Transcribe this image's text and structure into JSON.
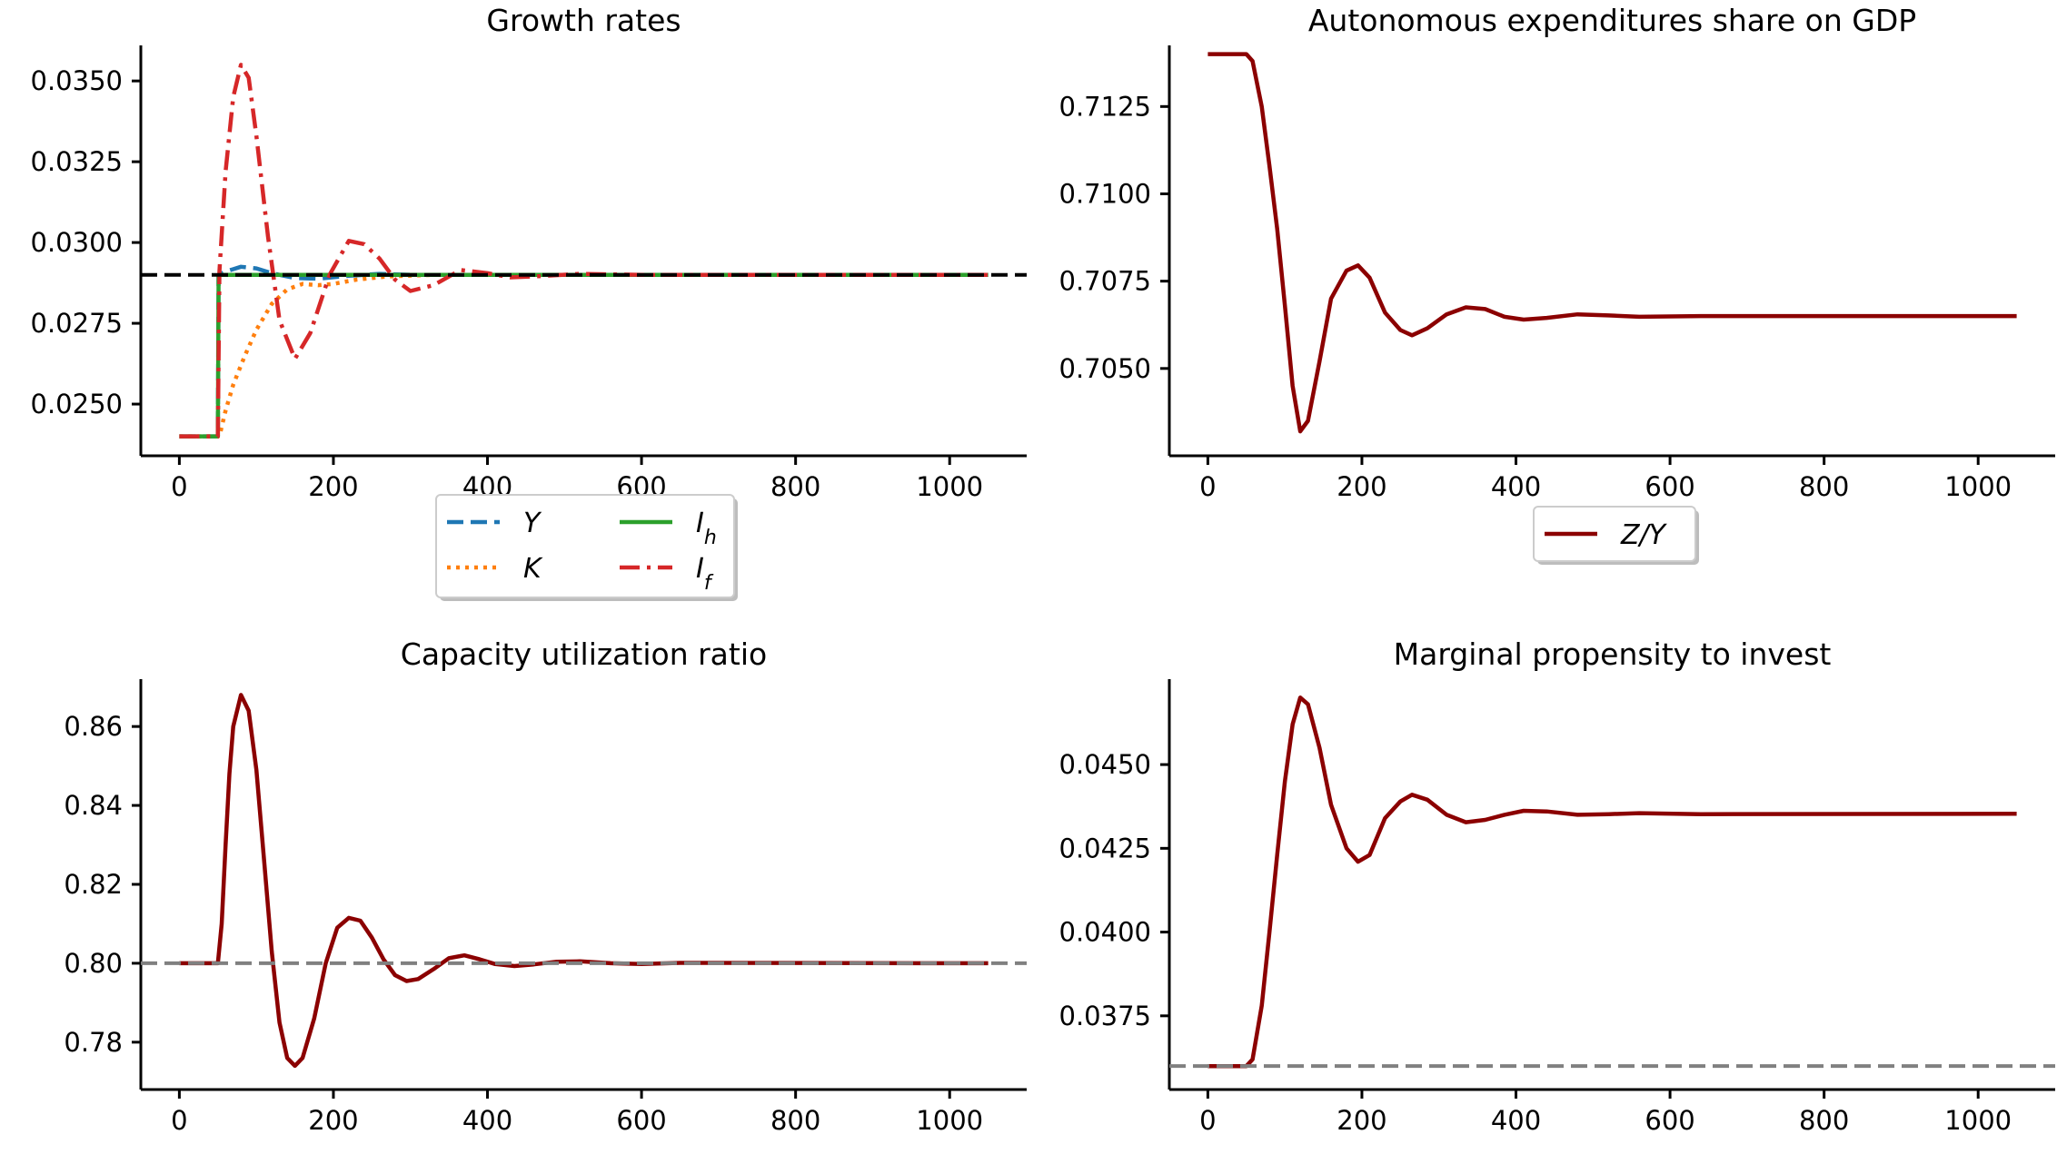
{
  "figure": {
    "background": "#ffffff"
  },
  "colors": {
    "tab_blue": "#1f77b4",
    "tab_orange": "#ff7f0e",
    "tab_green": "#2ca02c",
    "tab_red": "#d62728",
    "darkred": "#8b0000",
    "gray": "#808080",
    "black": "#000000"
  },
  "chart_data": [
    {
      "id": "growth",
      "type": "line",
      "title": "Growth rates",
      "xlabel": "",
      "ylabel": "",
      "xlim": [
        -50,
        1100
      ],
      "ylim": [
        0.0234,
        0.0361
      ],
      "xticks": [
        0,
        200,
        400,
        600,
        800,
        1000
      ],
      "xtick_labels": [
        "0",
        "200",
        "400",
        "600",
        "800",
        "1000"
      ],
      "yticks": [
        0.025,
        0.0275,
        0.03,
        0.0325,
        0.035
      ],
      "ytick_labels": [
        "0.0250",
        "0.0275",
        "0.0300",
        "0.0325",
        "0.0350"
      ],
      "grid": false,
      "legend": {
        "placement": "below",
        "columns": 2
      },
      "reference_lines": [
        {
          "y": 0.029,
          "style": "dashed",
          "color": "#000000"
        }
      ],
      "series": [
        {
          "name": "Y",
          "label_html": "Y",
          "color": "#1f77b4",
          "style": "dashed",
          "points": [
            [
              0,
              0.024
            ],
            [
              50,
              0.024
            ],
            [
              51,
              0.029
            ],
            [
              60,
              0.0291
            ],
            [
              80,
              0.02925
            ],
            [
              100,
              0.0292
            ],
            [
              120,
              0.02905
            ],
            [
              150,
              0.0289
            ],
            [
              180,
              0.02888
            ],
            [
              220,
              0.02897
            ],
            [
              260,
              0.02903
            ],
            [
              300,
              0.029
            ],
            [
              400,
              0.029
            ],
            [
              1050,
              0.029
            ]
          ]
        },
        {
          "name": "K",
          "label_html": "K",
          "color": "#ff7f0e",
          "style": "dotted",
          "points": [
            [
              0,
              0.024
            ],
            [
              52,
              0.024
            ],
            [
              60,
              0.0248
            ],
            [
              70,
              0.0256
            ],
            [
              85,
              0.0265
            ],
            [
              100,
              0.0273
            ],
            [
              120,
              0.0281
            ],
            [
              140,
              0.02855
            ],
            [
              160,
              0.02872
            ],
            [
              180,
              0.02868
            ],
            [
              200,
              0.02872
            ],
            [
              230,
              0.02885
            ],
            [
              270,
              0.02895
            ],
            [
              330,
              0.029
            ],
            [
              1050,
              0.029
            ]
          ]
        },
        {
          "name": "I_h",
          "label_html": "I<sub>h</sub>",
          "color": "#2ca02c",
          "style": "solid",
          "points": [
            [
              0,
              0.024
            ],
            [
              50,
              0.024
            ],
            [
              51,
              0.029
            ],
            [
              1050,
              0.029
            ]
          ]
        },
        {
          "name": "I_f",
          "label_html": "I<sub>f</sub>",
          "color": "#d62728",
          "style": "dashdot",
          "points": [
            [
              0,
              0.024
            ],
            [
              50,
              0.024
            ],
            [
              52,
              0.0291
            ],
            [
              60,
              0.0322
            ],
            [
              70,
              0.0345
            ],
            [
              80,
              0.0355
            ],
            [
              90,
              0.0351
            ],
            [
              100,
              0.0333
            ],
            [
              115,
              0.0302
            ],
            [
              130,
              0.0276
            ],
            [
              150,
              0.0264
            ],
            [
              170,
              0.0272
            ],
            [
              195,
              0.029
            ],
            [
              220,
              0.03005
            ],
            [
              240,
              0.02995
            ],
            [
              260,
              0.0295
            ],
            [
              280,
              0.02885
            ],
            [
              300,
              0.0285
            ],
            [
              330,
              0.02868
            ],
            [
              365,
              0.02915
            ],
            [
              400,
              0.02905
            ],
            [
              430,
              0.02892
            ],
            [
              470,
              0.02896
            ],
            [
              520,
              0.02903
            ],
            [
              600,
              0.029
            ],
            [
              1050,
              0.029
            ]
          ]
        }
      ]
    },
    {
      "id": "zy",
      "type": "line",
      "title": "Autonomous expenditures share on GDP",
      "xlabel": "",
      "ylabel": "",
      "xlim": [
        -50,
        1100
      ],
      "ylim": [
        0.7025,
        0.71425
      ],
      "xticks": [
        0,
        200,
        400,
        600,
        800,
        1000
      ],
      "xtick_labels": [
        "0",
        "200",
        "400",
        "600",
        "800",
        "1000"
      ],
      "yticks": [
        0.705,
        0.7075,
        0.71,
        0.7125
      ],
      "ytick_labels": [
        "0.7050",
        "0.7075",
        "0.7100",
        "0.7125"
      ],
      "grid": false,
      "legend": {
        "placement": "below",
        "columns": 1
      },
      "series": [
        {
          "name": "Z/Y",
          "label_html": "Z/Y",
          "color": "#8b0000",
          "style": "solid",
          "points": [
            [
              0,
              0.714
            ],
            [
              50,
              0.714
            ],
            [
              58,
              0.7138
            ],
            [
              70,
              0.7125
            ],
            [
              80,
              0.7108
            ],
            [
              90,
              0.709
            ],
            [
              100,
              0.7068
            ],
            [
              110,
              0.7045
            ],
            [
              120,
              0.7032
            ],
            [
              130,
              0.7035
            ],
            [
              145,
              0.7052
            ],
            [
              160,
              0.707
            ],
            [
              180,
              0.7078
            ],
            [
              195,
              0.70795
            ],
            [
              210,
              0.7076
            ],
            [
              230,
              0.7066
            ],
            [
              250,
              0.7061
            ],
            [
              265,
              0.70595
            ],
            [
              285,
              0.70615
            ],
            [
              310,
              0.70655
            ],
            [
              335,
              0.70675
            ],
            [
              360,
              0.7067
            ],
            [
              385,
              0.70648
            ],
            [
              410,
              0.7064
            ],
            [
              440,
              0.70645
            ],
            [
              480,
              0.70655
            ],
            [
              520,
              0.70652
            ],
            [
              560,
              0.70648
            ],
            [
              640,
              0.7065
            ],
            [
              1050,
              0.7065
            ]
          ]
        }
      ]
    },
    {
      "id": "util",
      "type": "line",
      "title": "Capacity utilization ratio",
      "xlabel": "",
      "ylabel": "",
      "xlim": [
        -50,
        1100
      ],
      "ylim": [
        0.768,
        0.872
      ],
      "xticks": [
        0,
        200,
        400,
        600,
        800,
        1000
      ],
      "xtick_labels": [
        "0",
        "200",
        "400",
        "600",
        "800",
        "1000"
      ],
      "yticks": [
        0.78,
        0.8,
        0.82,
        0.84,
        0.86
      ],
      "ytick_labels": [
        "0.78",
        "0.80",
        "0.82",
        "0.84",
        "0.86"
      ],
      "grid": false,
      "legend": null,
      "reference_lines": [
        {
          "y": 0.8,
          "style": "dashed",
          "color": "#808080"
        }
      ],
      "series": [
        {
          "name": "",
          "color": "#8b0000",
          "style": "solid",
          "points": [
            [
              0,
              0.8
            ],
            [
              50,
              0.8
            ],
            [
              55,
              0.81
            ],
            [
              60,
              0.83
            ],
            [
              65,
              0.848
            ],
            [
              70,
              0.86
            ],
            [
              80,
              0.868
            ],
            [
              90,
              0.864
            ],
            [
              100,
              0.849
            ],
            [
              110,
              0.826
            ],
            [
              120,
              0.803
            ],
            [
              130,
              0.785
            ],
            [
              140,
              0.776
            ],
            [
              150,
              0.774
            ],
            [
              160,
              0.776
            ],
            [
              175,
              0.786
            ],
            [
              190,
              0.8
            ],
            [
              205,
              0.809
            ],
            [
              220,
              0.8115
            ],
            [
              235,
              0.8108
            ],
            [
              250,
              0.8065
            ],
            [
              265,
              0.801
            ],
            [
              280,
              0.797
            ],
            [
              295,
              0.7955
            ],
            [
              310,
              0.796
            ],
            [
              330,
              0.7985
            ],
            [
              350,
              0.8013
            ],
            [
              370,
              0.802
            ],
            [
              390,
              0.801
            ],
            [
              410,
              0.7998
            ],
            [
              435,
              0.7993
            ],
            [
              460,
              0.7997
            ],
            [
              490,
              0.8004
            ],
            [
              520,
              0.8005
            ],
            [
              560,
              0.8
            ],
            [
              600,
              0.7998
            ],
            [
              650,
              0.8001
            ],
            [
              1050,
              0.8
            ]
          ]
        }
      ]
    },
    {
      "id": "mpi",
      "type": "line",
      "title": "Marginal propensity to invest",
      "xlabel": "",
      "ylabel": "",
      "xlim": [
        -50,
        1100
      ],
      "ylim": [
        0.0353,
        0.04755
      ],
      "xticks": [
        0,
        200,
        400,
        600,
        800,
        1000
      ],
      "xtick_labels": [
        "0",
        "200",
        "400",
        "600",
        "800",
        "1000"
      ],
      "yticks": [
        0.0375,
        0.04,
        0.0425,
        0.045
      ],
      "ytick_labels": [
        "0.0375",
        "0.0400",
        "0.0425",
        "0.0450"
      ],
      "grid": false,
      "legend": null,
      "reference_lines": [
        {
          "y": 0.036,
          "style": "dashed",
          "color": "#808080"
        }
      ],
      "series": [
        {
          "name": "",
          "color": "#8b0000",
          "style": "solid",
          "points": [
            [
              0,
              0.036
            ],
            [
              50,
              0.036
            ],
            [
              58,
              0.0362
            ],
            [
              70,
              0.0378
            ],
            [
              80,
              0.04
            ],
            [
              90,
              0.0423
            ],
            [
              100,
              0.0445
            ],
            [
              110,
              0.0462
            ],
            [
              120,
              0.047
            ],
            [
              130,
              0.0468
            ],
            [
              145,
              0.0455
            ],
            [
              160,
              0.0438
            ],
            [
              180,
              0.0425
            ],
            [
              195,
              0.0421
            ],
            [
              210,
              0.0423
            ],
            [
              230,
              0.0434
            ],
            [
              250,
              0.0439
            ],
            [
              265,
              0.0441
            ],
            [
              285,
              0.04395
            ],
            [
              310,
              0.0435
            ],
            [
              335,
              0.04328
            ],
            [
              360,
              0.04335
            ],
            [
              385,
              0.0435
            ],
            [
              410,
              0.04362
            ],
            [
              440,
              0.0436
            ],
            [
              480,
              0.0435
            ],
            [
              520,
              0.04352
            ],
            [
              560,
              0.04355
            ],
            [
              640,
              0.04352
            ],
            [
              1050,
              0.04353
            ]
          ]
        }
      ]
    }
  ]
}
